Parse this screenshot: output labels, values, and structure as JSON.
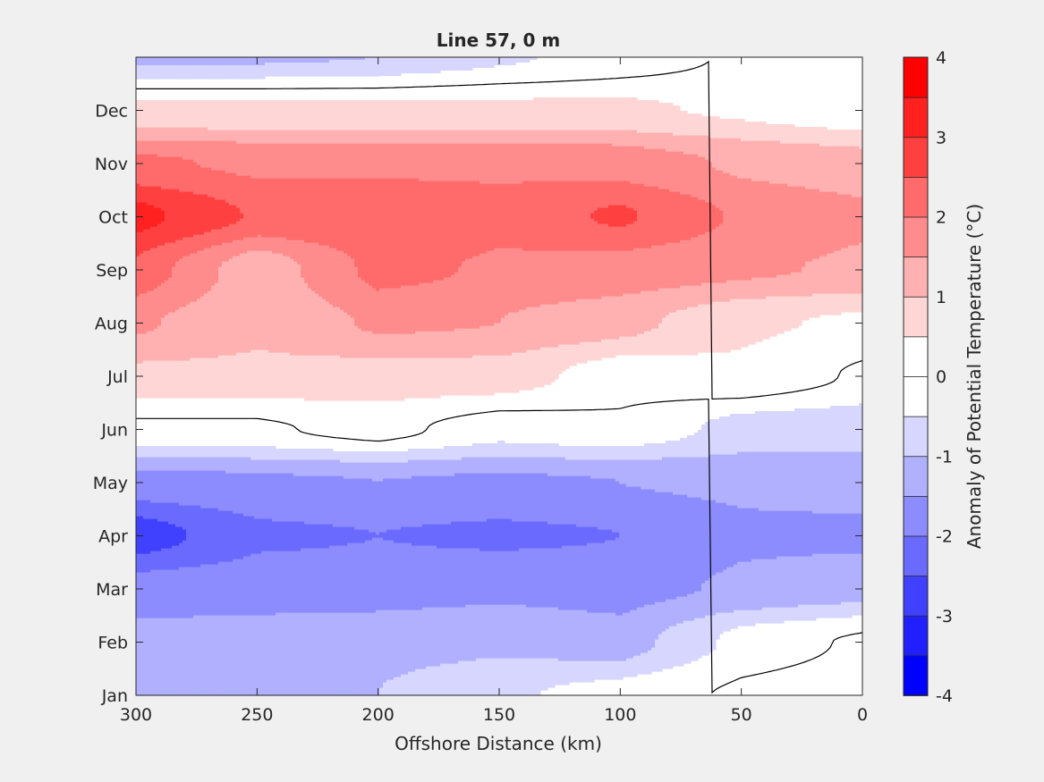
{
  "chart_data": {
    "type": "heatmap",
    "subtype": "filled-contour",
    "title": "Line 57, 0 m",
    "xlabel": "Offshore Distance (km)",
    "ylabel": "",
    "colorbar_label": "Anomaly of Potential Temperature (°C)",
    "xlim": [
      300,
      0
    ],
    "x_ticks": [
      300,
      250,
      200,
      150,
      100,
      50,
      0
    ],
    "y_ticks": [
      "Jan",
      "Feb",
      "Mar",
      "Apr",
      "May",
      "Jun",
      "Jul",
      "Aug",
      "Sep",
      "Oct",
      "Nov",
      "Dec"
    ],
    "grid": false,
    "colorbar": {
      "clim": [
        -4,
        4
      ],
      "step": 0.5,
      "ticks": [
        -4,
        -3,
        -2,
        -1,
        0,
        1,
        2,
        3,
        4
      ],
      "colors": [
        "#0000ff",
        "#2020ff",
        "#4040ff",
        "#6a6aff",
        "#8c8cff",
        "#b0b0ff",
        "#d6d6ff",
        "#ffffff",
        "#ffffff",
        "#ffd6d6",
        "#ffb0b0",
        "#ff8c8c",
        "#ff6a6a",
        "#ff4040",
        "#ff2020",
        "#ff0000"
      ],
      "position": "right"
    },
    "zero_contour": true,
    "months": [
      "Jan",
      "Feb",
      "Mar",
      "Apr",
      "May",
      "Jun",
      "Jul",
      "Aug",
      "Sep",
      "Oct",
      "Nov",
      "Dec"
    ],
    "x_km": [
      300,
      250,
      200,
      150,
      100,
      50,
      0
    ],
    "values": [
      [
        -1.1,
        -1.1,
        -1.0,
        -0.6,
        -0.3,
        0.1,
        0.3
      ],
      [
        -1.3,
        -1.3,
        -1.2,
        -1.1,
        -1.3,
        -0.3,
        0.1
      ],
      [
        -1.8,
        -1.7,
        -1.7,
        -1.6,
        -1.7,
        -1.4,
        -1.2
      ],
      [
        -2.8,
        -2.1,
        -2.0,
        -2.1,
        -2.0,
        -1.6,
        -1.6
      ],
      [
        -1.7,
        -1.6,
        -1.5,
        -1.6,
        -1.5,
        -1.4,
        -1.3
      ],
      [
        -0.1,
        -0.1,
        0.2,
        -0.3,
        -0.1,
        -0.7,
        -0.8
      ],
      [
        0.9,
        0.9,
        0.8,
        0.8,
        0.2,
        0.4,
        -0.1
      ],
      [
        1.6,
        1.1,
        1.6,
        1.5,
        1.2,
        0.6,
        0.4
      ],
      [
        2.4,
        1.1,
        2.2,
        1.9,
        1.8,
        1.6,
        1.4
      ],
      [
        3.2,
        2.4,
        2.4,
        2.2,
        2.6,
        1.9,
        1.6
      ],
      [
        2.1,
        1.9,
        1.9,
        1.9,
        1.8,
        1.4,
        1.2
      ],
      [
        0.6,
        0.6,
        0.6,
        0.6,
        0.6,
        0.4,
        0.1
      ]
    ]
  }
}
